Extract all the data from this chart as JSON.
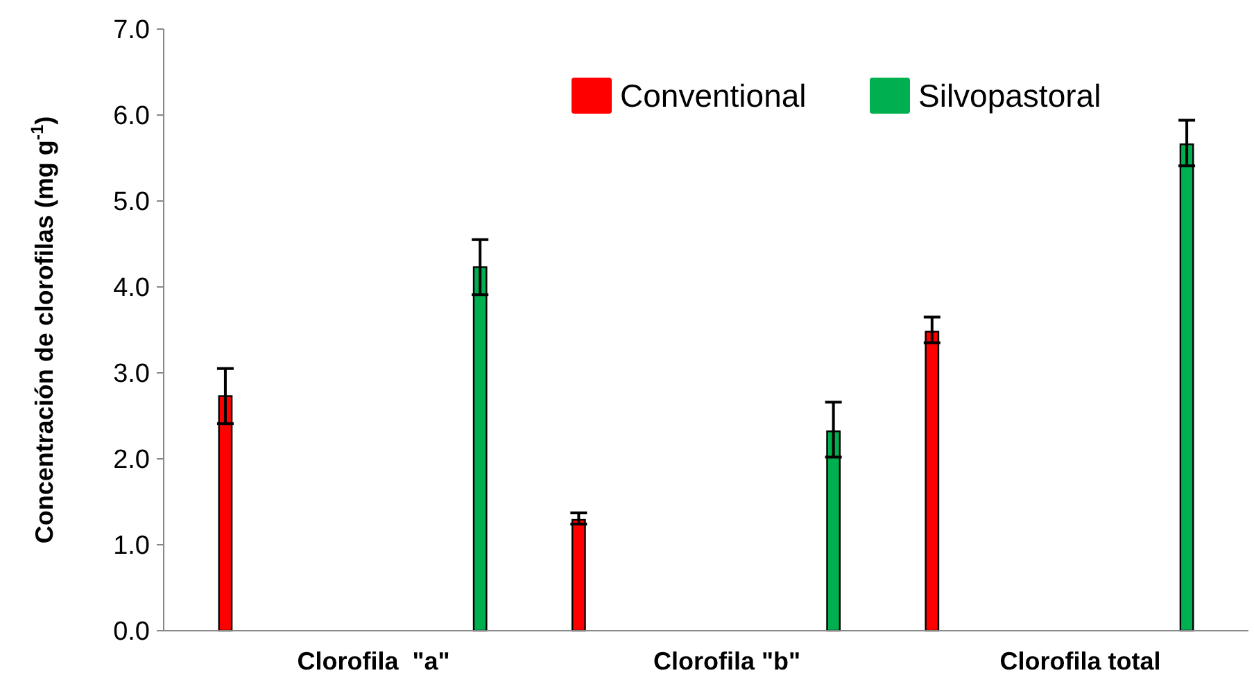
{
  "chart_data": {
    "type": "bar",
    "ylabel": "Concentración de clorofilas (mg g$^{-1}$)",
    "categories": [
      "Clorofila  \"a\"",
      "Clorofila \"b\"",
      "Clorofila total"
    ],
    "series": [
      {
        "name": "Conventional",
        "color": "#ff0000",
        "values": [
          2.73,
          1.29,
          3.48
        ],
        "errors": [
          [
            2.41,
            3.05
          ],
          [
            1.24,
            1.37
          ],
          [
            3.35,
            3.65
          ]
        ]
      },
      {
        "name": "Silvopastoral",
        "color": "#00b050",
        "values": [
          4.23,
          2.32,
          5.66
        ],
        "errors": [
          [
            3.91,
            4.55
          ],
          [
            2.02,
            2.66
          ],
          [
            5.41,
            5.94
          ]
        ]
      }
    ],
    "ylim": [
      0,
      7
    ],
    "yticks": [
      {
        "value": 0,
        "label": "0.0"
      },
      {
        "value": 1,
        "label": "1.0"
      },
      {
        "value": 2,
        "label": "2.0"
      },
      {
        "value": 3,
        "label": "3.0"
      },
      {
        "value": 4,
        "label": "4.0"
      },
      {
        "value": 5,
        "label": "5.0"
      },
      {
        "value": 6,
        "label": "6.0"
      },
      {
        "value": 7,
        "label": "7.0"
      }
    ],
    "legend": "top",
    "grid": false
  }
}
